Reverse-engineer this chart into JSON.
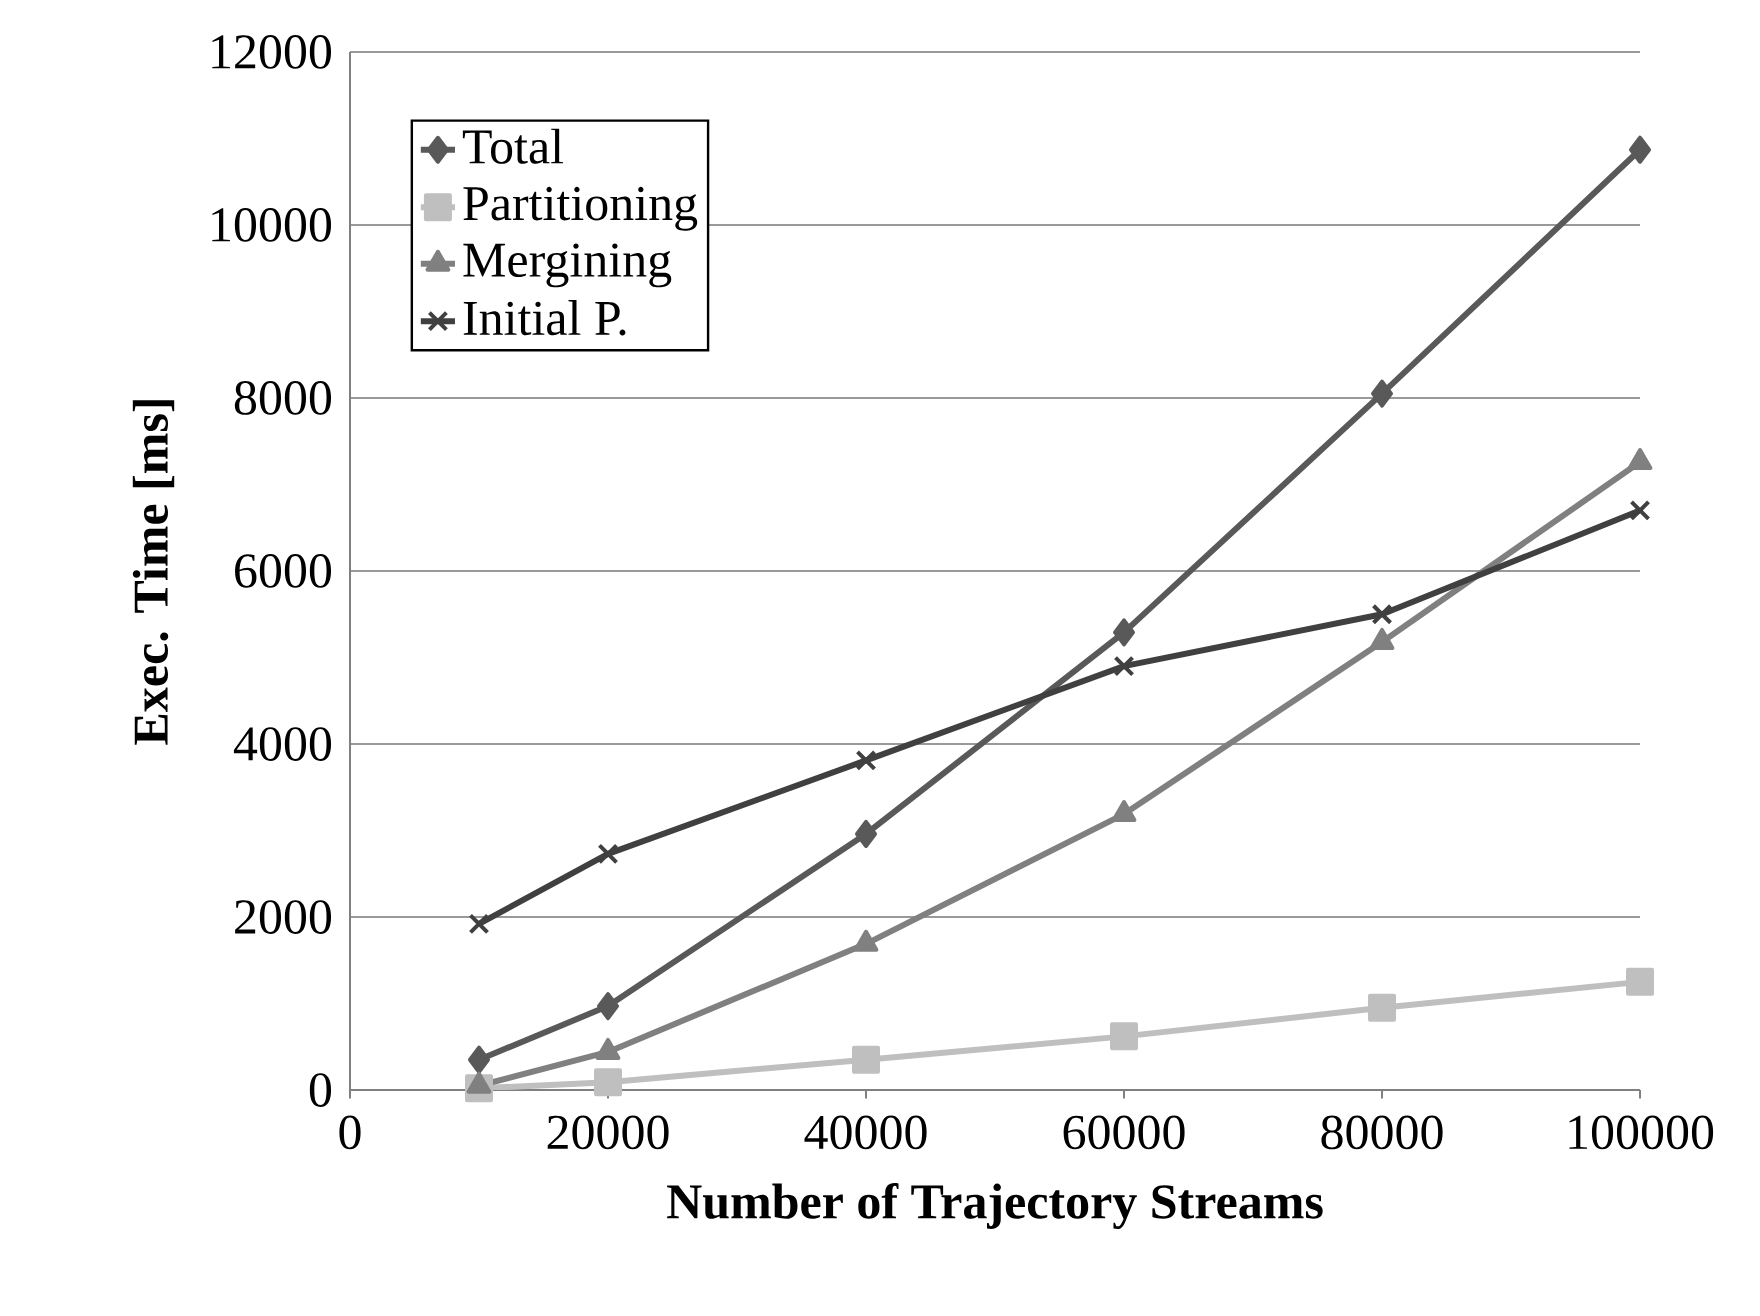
{
  "chart_data": {
    "type": "line",
    "xlabel": "Number of Trajectory Streams",
    "ylabel": "Exec. Time [ms]",
    "x": [
      10000,
      20000,
      40000,
      60000,
      80000,
      100000
    ],
    "series": [
      {
        "name": "Total",
        "color": "#595959",
        "marker": "diamond",
        "values": [
          350,
          970,
          2960,
          5290,
          8050,
          10870
        ]
      },
      {
        "name": "Partitioning",
        "color": "#bfbfbf",
        "marker": "square",
        "values": [
          20,
          90,
          350,
          620,
          950,
          1250
        ]
      },
      {
        "name": "Mergining",
        "color": "#808080",
        "marker": "triangle",
        "values": [
          50,
          440,
          1690,
          3190,
          5180,
          7260
        ]
      },
      {
        "name": "Initial P.",
        "color": "#404040",
        "marker": "cross",
        "values": [
          1920,
          2730,
          3810,
          4900,
          5500,
          6700
        ]
      }
    ],
    "xlim": [
      0,
      100000
    ],
    "xticks": [
      0,
      20000,
      40000,
      60000,
      80000,
      100000
    ],
    "ylim": [
      0,
      12000
    ],
    "yticks": [
      0,
      2000,
      4000,
      6000,
      8000,
      10000,
      12000
    ],
    "grid": "y",
    "legend": "top left",
    "line_style": "solid"
  }
}
